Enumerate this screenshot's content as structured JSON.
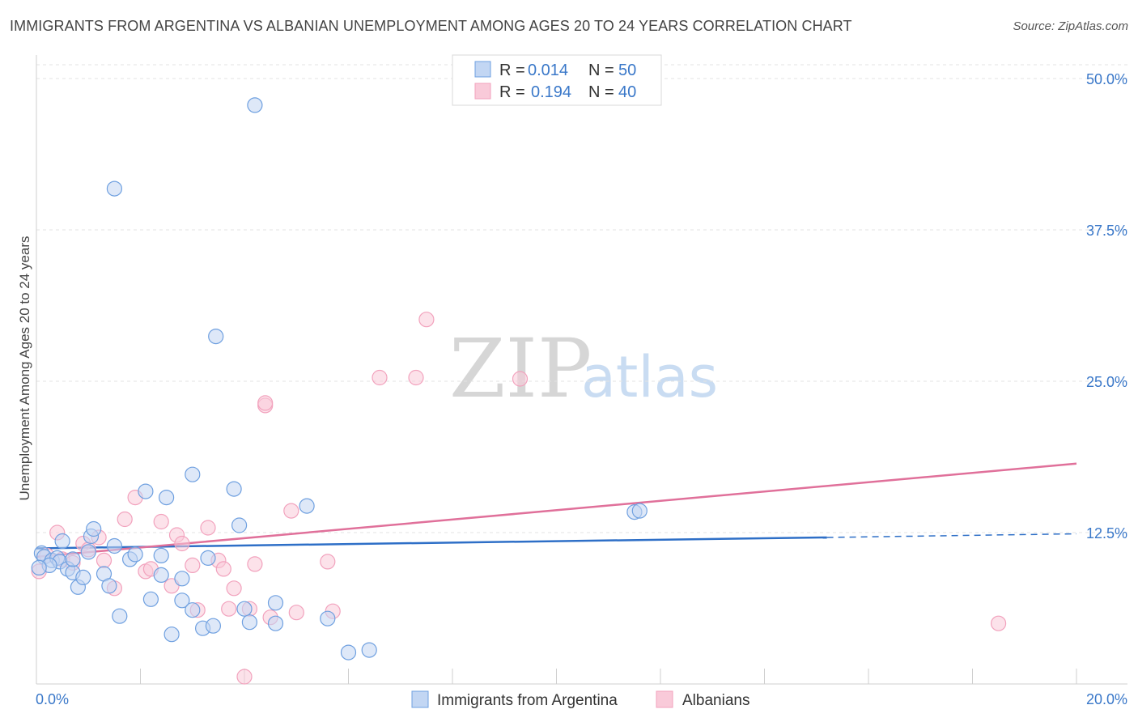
{
  "header": {
    "title": "IMMIGRANTS FROM ARGENTINA VS ALBANIAN UNEMPLOYMENT AMONG AGES 20 TO 24 YEARS CORRELATION CHART",
    "source": "Source: ZipAtlas.com"
  },
  "watermark": {
    "zip": "ZIP",
    "atlas": "atlas"
  },
  "legend": {
    "row1": {
      "r_label": "R =",
      "r_value": "0.014",
      "n_label": "N =",
      "n_value": "50"
    },
    "row2": {
      "r_label": "R =",
      "r_value": "0.194",
      "n_label": "N =",
      "n_value": "40"
    }
  },
  "bottom_legend": {
    "series1": "Immigrants from Argentina",
    "series2": "Albanians"
  },
  "chart_data": {
    "type": "scatter",
    "title": "IMMIGRANTS FROM ARGENTINA VS ALBANIAN UNEMPLOYMENT AMONG AGES 20 TO 24 YEARS CORRELATION CHART",
    "xlabel": "",
    "ylabel": "Unemployment Among Ages 20 to 24 years",
    "xlim": [
      0,
      20
    ],
    "ylim": [
      0,
      50
    ],
    "x_tick_labels": [
      "0.0%",
      "20.0%"
    ],
    "y_ticks": [
      12.5,
      25.0,
      37.5,
      50.0
    ],
    "y_tick_labels": [
      "12.5%",
      "25.0%",
      "37.5%",
      "50.0%"
    ],
    "grid": true,
    "colors": {
      "argentina": "#6fa0e0",
      "albanians": "#f2a2bd",
      "argentina_line": "#2e6fc7",
      "albanians_line": "#e0709a"
    },
    "series": [
      {
        "name": "Immigrants from Argentina",
        "R": 0.014,
        "N": 50,
        "trend": {
          "x0": 0,
          "y0": 11.2,
          "x1": 15.2,
          "y1": 12.1,
          "dashed_to_x": 20,
          "dashed_to_y": 12.4
        },
        "points": [
          [
            0.1,
            10.8
          ],
          [
            0.15,
            10.5
          ],
          [
            0.3,
            10.2
          ],
          [
            0.4,
            10.4
          ],
          [
            0.5,
            11.8
          ],
          [
            0.45,
            10.1
          ],
          [
            0.6,
            9.5
          ],
          [
            0.7,
            9.2
          ],
          [
            0.8,
            8.0
          ],
          [
            0.9,
            8.8
          ],
          [
            1.0,
            10.9
          ],
          [
            1.05,
            12.2
          ],
          [
            1.1,
            12.8
          ],
          [
            1.3,
            9.1
          ],
          [
            1.4,
            8.1
          ],
          [
            1.5,
            11.4
          ],
          [
            1.6,
            5.6
          ],
          [
            1.8,
            10.3
          ],
          [
            1.9,
            10.7
          ],
          [
            2.1,
            15.9
          ],
          [
            2.2,
            7.0
          ],
          [
            2.4,
            9.0
          ],
          [
            2.4,
            10.6
          ],
          [
            2.5,
            15.4
          ],
          [
            2.6,
            4.1
          ],
          [
            2.8,
            6.9
          ],
          [
            2.8,
            8.7
          ],
          [
            3.0,
            6.1
          ],
          [
            3.0,
            17.3
          ],
          [
            3.2,
            4.6
          ],
          [
            3.3,
            10.4
          ],
          [
            3.4,
            4.8
          ],
          [
            3.45,
            28.7
          ],
          [
            3.8,
            16.1
          ],
          [
            3.9,
            13.1
          ],
          [
            4.0,
            6.2
          ],
          [
            4.1,
            5.1
          ],
          [
            4.2,
            47.8
          ],
          [
            4.6,
            6.7
          ],
          [
            4.6,
            5.0
          ],
          [
            5.2,
            14.7
          ],
          [
            5.6,
            5.4
          ],
          [
            6.0,
            2.6
          ],
          [
            6.4,
            2.8
          ],
          [
            1.5,
            40.9
          ],
          [
            11.5,
            14.2
          ],
          [
            11.6,
            14.3
          ],
          [
            0.25,
            9.8
          ],
          [
            0.05,
            9.6
          ],
          [
            0.7,
            10.3
          ]
        ]
      },
      {
        "name": "Albanians",
        "R": 0.194,
        "N": 40,
        "trend": {
          "x0": 0,
          "y0": 10.5,
          "x1": 20,
          "y1": 18.2
        },
        "points": [
          [
            0.05,
            9.3
          ],
          [
            0.2,
            10.6
          ],
          [
            0.4,
            12.5
          ],
          [
            0.5,
            10.3
          ],
          [
            0.7,
            10.0
          ],
          [
            0.9,
            11.6
          ],
          [
            1.0,
            11.1
          ],
          [
            1.2,
            12.1
          ],
          [
            1.3,
            10.2
          ],
          [
            1.5,
            7.9
          ],
          [
            1.7,
            13.6
          ],
          [
            1.9,
            15.4
          ],
          [
            2.1,
            9.3
          ],
          [
            2.2,
            9.5
          ],
          [
            2.4,
            13.4
          ],
          [
            2.6,
            8.1
          ],
          [
            2.7,
            12.3
          ],
          [
            2.8,
            11.6
          ],
          [
            3.0,
            9.8
          ],
          [
            3.1,
            6.1
          ],
          [
            3.3,
            12.9
          ],
          [
            3.5,
            10.2
          ],
          [
            3.6,
            9.5
          ],
          [
            3.7,
            6.2
          ],
          [
            3.8,
            7.9
          ],
          [
            4.0,
            0.6
          ],
          [
            4.1,
            6.2
          ],
          [
            4.2,
            9.9
          ],
          [
            4.4,
            23.0
          ],
          [
            4.4,
            23.2
          ],
          [
            4.5,
            5.5
          ],
          [
            4.9,
            14.3
          ],
          [
            5.0,
            5.9
          ],
          [
            5.6,
            10.1
          ],
          [
            5.7,
            6.0
          ],
          [
            6.6,
            25.3
          ],
          [
            7.3,
            25.3
          ],
          [
            7.5,
            30.1
          ],
          [
            9.3,
            25.2
          ],
          [
            18.5,
            5.0
          ]
        ]
      }
    ]
  }
}
